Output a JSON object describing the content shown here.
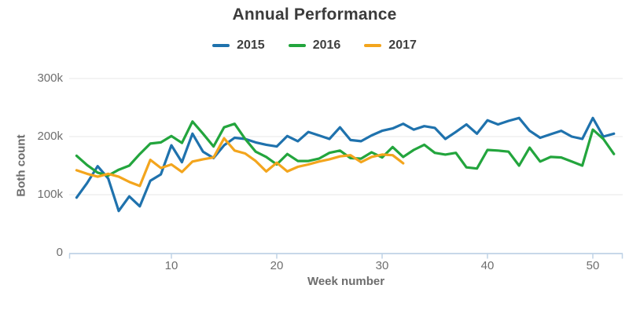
{
  "chart_data": {
    "type": "line",
    "title": "Annual Performance",
    "xlabel": "Week number",
    "ylabel": "Both count",
    "x_start_week": 1,
    "x_step": 1,
    "x_ticks": [
      10,
      20,
      30,
      40,
      50
    ],
    "y_ticks": [
      {
        "value": 0,
        "label": "0"
      },
      {
        "value": 100000,
        "label": "100k"
      },
      {
        "value": 200000,
        "label": "200k"
      },
      {
        "value": 300000,
        "label": "300k"
      }
    ],
    "xlim": [
      0.3,
      52.8
    ],
    "ylim": [
      0,
      307000
    ],
    "grid": "horizontal",
    "legend_position": "top-center",
    "series": [
      {
        "name": "2015",
        "color": "#1f72ad",
        "values": [
          95000,
          120000,
          149000,
          128000,
          72000,
          97000,
          80000,
          124000,
          135000,
          185000,
          156000,
          205000,
          174000,
          163000,
          185000,
          198000,
          196000,
          190000,
          186000,
          183000,
          201000,
          192000,
          208000,
          202000,
          196000,
          216000,
          194000,
          192000,
          202000,
          210000,
          214000,
          222000,
          212000,
          218000,
          215000,
          196000,
          208000,
          221000,
          205000,
          228000,
          221000,
          227000,
          232000,
          210000,
          198000,
          204000,
          210000,
          200000,
          196000,
          232000,
          200000,
          205000
        ]
      },
      {
        "name": "2016",
        "color": "#23a53d",
        "values": [
          167000,
          151000,
          138000,
          133000,
          143000,
          150000,
          170000,
          188000,
          190000,
          201000,
          189000,
          226000,
          205000,
          183000,
          216000,
          222000,
          196000,
          174000,
          165000,
          152000,
          170000,
          158000,
          158000,
          162000,
          172000,
          176000,
          163000,
          162000,
          173000,
          164000,
          182000,
          165000,
          177000,
          186000,
          172000,
          169000,
          172000,
          147000,
          145000,
          177000,
          176000,
          174000,
          150000,
          181000,
          157000,
          165000,
          164000,
          157000,
          150000,
          212000,
          196000,
          170000
        ]
      },
      {
        "name": "2017",
        "color": "#f3a51d",
        "values": [
          142000,
          136000,
          131000,
          136000,
          131000,
          122000,
          115000,
          160000,
          146000,
          152000,
          139000,
          157000,
          161000,
          164000,
          197000,
          176000,
          171000,
          158000,
          140000,
          155000,
          140000,
          148000,
          152000,
          157000,
          161000,
          166000,
          168000,
          156000,
          165000,
          169000,
          168000,
          154000
        ]
      }
    ]
  }
}
